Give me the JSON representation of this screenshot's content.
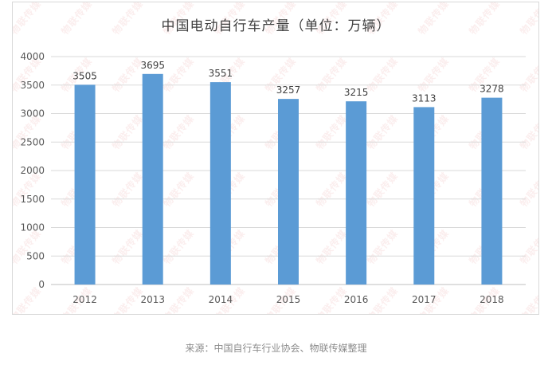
{
  "chart_data": {
    "type": "bar",
    "title": "中国电动自行车产量（单位：万辆）",
    "categories": [
      "2012",
      "2013",
      "2014",
      "2015",
      "2016",
      "2017",
      "2018"
    ],
    "values": [
      3505,
      3695,
      3551,
      3257,
      3215,
      3113,
      3278
    ],
    "data_labels": [
      "3505",
      "3695",
      "3551",
      "3257",
      "3215",
      "3113",
      "3278"
    ],
    "y_ticks": [
      "0",
      "500",
      "1000",
      "1500",
      "2000",
      "2500",
      "3000",
      "3500",
      "4000"
    ],
    "ylim": [
      0,
      4000
    ],
    "xlabel": "",
    "ylabel": "",
    "grid": true,
    "bar_color": "#5b9bd5",
    "grid_color": "#d9d9d9"
  },
  "source_note": "来源：中国自行车行业协会、物联传媒整理",
  "watermark": {
    "text": "物联传媒",
    "subtext": "IoT Media",
    "color": "#dc5a5a"
  }
}
